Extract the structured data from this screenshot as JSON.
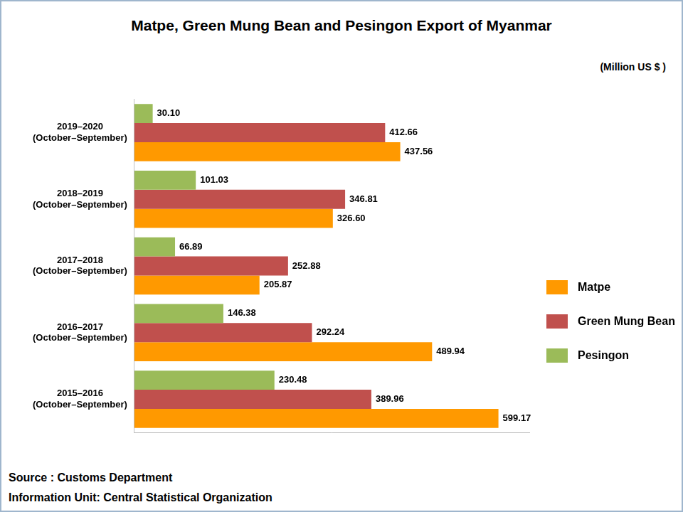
{
  "chart_data": {
    "type": "bar",
    "orientation": "horizontal",
    "title": "Matpe, Green Mung Bean and Pesingon Export of Myanmar",
    "subtitle": "(Million US $ )",
    "annotations": [
      "Source : Customs Department",
      "Information Unit:  Central Statistical Organization"
    ],
    "categories": [
      "2019–2020 (October–September)",
      "2018–2019 (October–September)",
      "2017–2018 (October–September)",
      "2016–2017 (October–September)",
      "2015–2016 (October–September)"
    ],
    "series": [
      {
        "name": "Pesingon",
        "color": "#9bbb59",
        "values": [
          30.1,
          101.03,
          66.89,
          146.38,
          230.48
        ],
        "value_labels": [
          "30.10",
          "101.03",
          "66.89",
          "146.38",
          "230.48"
        ]
      },
      {
        "name": "Green Mung Bean",
        "color": "#c0504d",
        "values": [
          412.66,
          346.81,
          252.88,
          292.24,
          389.96
        ],
        "value_labels": [
          "412.66",
          "346.81",
          "252.88",
          "292.24",
          "389.96"
        ]
      },
      {
        "name": "Matpe",
        "color": "#ff9900",
        "values": [
          437.56,
          326.6,
          205.87,
          489.94,
          599.17
        ],
        "value_labels": [
          "437.56",
          "326.60",
          "205.87",
          "489.94",
          "599.17"
        ]
      }
    ],
    "xlim": [
      0,
      650
    ],
    "grid": false,
    "legend": "right",
    "data_labels": true,
    "tick_labels": "y"
  }
}
